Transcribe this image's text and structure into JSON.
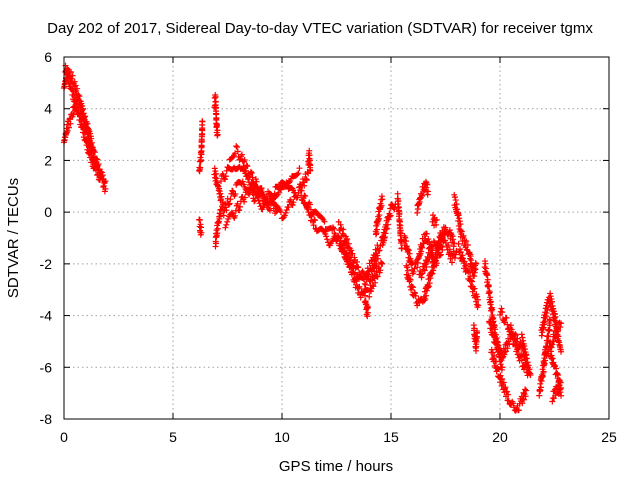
{
  "chart_data": {
    "type": "scatter",
    "title": "Day 202 of 2017, Sidereal Day-to-day VTEC variation (SDTVAR) for receiver tgmx",
    "xlabel": "GPS time / hours",
    "ylabel": "SDTVAR / TECUs",
    "xlim": [
      0,
      25
    ],
    "ylim": [
      -8,
      6
    ],
    "xticks": [
      0,
      5,
      10,
      15,
      20,
      25
    ],
    "yticks": [
      -8,
      -6,
      -4,
      -2,
      0,
      2,
      4,
      6
    ],
    "xtick_labels": [
      "0",
      "5",
      "10",
      "15",
      "20",
      "25"
    ],
    "ytick_labels": [
      "-8",
      "-6",
      "-4",
      "-2",
      "0",
      "2",
      "4",
      "6"
    ],
    "grid": true,
    "marker": "+",
    "series": [
      {
        "name": "SDTVAR",
        "color": "#ff0000",
        "tracks": [
          {
            "x": [
              0.0,
              0.15,
              0.3,
              0.45,
              0.6,
              0.75,
              0.9,
              1.05,
              1.2,
              1.35,
              1.5,
              1.65,
              1.8,
              1.9
            ],
            "y": [
              4.8,
              5.4,
              5.3,
              5.0,
              4.6,
              4.2,
              3.7,
              3.1,
              2.6,
              2.1,
              1.6,
              1.3,
              1.1,
              0.9
            ]
          },
          {
            "x": [
              0.0,
              0.1,
              0.2,
              0.35,
              0.5,
              0.65,
              0.8,
              0.95,
              1.1,
              1.25,
              1.4,
              1.55,
              1.7,
              1.9
            ],
            "y": [
              2.7,
              3.1,
              3.4,
              3.7,
              4.1,
              4.3,
              4.0,
              3.6,
              3.2,
              2.7,
              2.2,
              1.8,
              1.4,
              1.2
            ]
          },
          {
            "x": [
              0.05,
              0.2,
              0.4,
              0.6,
              0.8,
              1.0,
              1.2,
              1.4
            ],
            "y": [
              5.6,
              5.2,
              4.6,
              4.0,
              3.4,
              2.8,
              2.2,
              1.7
            ]
          },
          {
            "x": [
              6.2,
              6.25,
              6.3,
              6.35
            ],
            "y": [
              1.6,
              1.9,
              2.3,
              3.5
            ]
          },
          {
            "x": [
              6.2,
              6.25,
              6.3
            ],
            "y": [
              -0.3,
              -0.6,
              -0.8
            ]
          },
          {
            "x": [
              6.9,
              6.95,
              7.0,
              7.05
            ],
            "y": [
              4.2,
              4.4,
              3.3,
              3.0
            ]
          },
          {
            "x": [
              6.95,
              7.0,
              7.1,
              7.2
            ],
            "y": [
              -1.2,
              -0.8,
              -0.3,
              0.1
            ]
          },
          {
            "x": [
              6.9,
              7.0,
              7.1,
              7.2,
              7.3
            ],
            "y": [
              1.6,
              1.2,
              0.9,
              0.5,
              0.3
            ]
          },
          {
            "x": [
              7.2,
              7.5,
              7.8,
              8.1,
              8.4,
              8.7,
              9.0,
              9.3,
              9.6,
              9.9,
              10.2,
              10.5,
              10.8
            ],
            "y": [
              1.2,
              1.6,
              1.9,
              1.6,
              1.3,
              1.0,
              0.8,
              0.6,
              0.7,
              0.9,
              1.2,
              1.5,
              1.7
            ]
          },
          {
            "x": [
              7.3,
              7.6,
              7.9,
              8.2,
              8.5,
              8.8,
              9.1,
              9.4,
              9.7,
              10.0,
              10.3,
              10.6
            ],
            "y": [
              0.0,
              0.5,
              0.9,
              1.2,
              0.9,
              0.5,
              0.2,
              0.4,
              0.8,
              1.1,
              0.9,
              0.6
            ]
          },
          {
            "x": [
              7.6,
              7.9,
              8.2,
              8.5,
              8.8,
              9.1,
              9.4,
              9.7,
              10.0,
              10.3,
              10.6,
              10.9,
              11.2
            ],
            "y": [
              2.2,
              2.4,
              2.0,
              1.5,
              1.1,
              0.7,
              0.4,
              0.1,
              -0.1,
              0.2,
              0.6,
              1.0,
              1.5
            ]
          },
          {
            "x": [
              7.4,
              7.7,
              8.0,
              8.3,
              8.6,
              8.9,
              9.2,
              9.5,
              9.8
            ],
            "y": [
              -0.5,
              -0.2,
              0.2,
              0.6,
              1.0,
              0.8,
              0.4,
              0.2,
              0.1
            ]
          },
          {
            "x": [
              11.2,
              11.25,
              11.3
            ],
            "y": [
              1.9,
              2.2,
              1.6
            ]
          },
          {
            "x": [
              10.8,
              11.1,
              11.4,
              11.7,
              12.0,
              12.3,
              12.6,
              12.9,
              13.2,
              13.5,
              13.8,
              14.1,
              14.4
            ],
            "y": [
              0.8,
              0.4,
              0.0,
              -0.3,
              -0.5,
              -0.7,
              -1.1,
              -1.6,
              -2.2,
              -2.6,
              -2.8,
              -2.4,
              -1.8
            ]
          },
          {
            "x": [
              11.0,
              11.3,
              11.6,
              11.9,
              12.2,
              12.5,
              12.8,
              13.1,
              13.4,
              13.7,
              14.0,
              14.3,
              14.6
            ],
            "y": [
              0.2,
              -0.1,
              -0.6,
              -0.9,
              -1.2,
              -1.0,
              -1.4,
              -2.0,
              -2.8,
              -3.3,
              -3.1,
              -2.5,
              -2.0
            ]
          },
          {
            "x": [
              12.6,
              12.9,
              13.2,
              13.5,
              13.8,
              14.1,
              14.4,
              14.7
            ],
            "y": [
              -0.5,
              -1.0,
              -1.7,
              -2.2,
              -2.6,
              -2.0,
              -1.4,
              -1.0
            ]
          },
          {
            "x": [
              13.8,
              13.85,
              13.9,
              13.95
            ],
            "y": [
              -3.3,
              -3.6,
              -3.9,
              -3.7
            ]
          },
          {
            "x": [
              14.3,
              14.4,
              14.5,
              14.6
            ],
            "y": [
              -0.8,
              -0.3,
              0.2,
              0.5
            ]
          },
          {
            "x": [
              14.6,
              14.8,
              15.0,
              15.2
            ],
            "y": [
              -1.2,
              -0.5,
              0.1,
              0.3
            ]
          },
          {
            "x": [
              15.3,
              15.35,
              15.4,
              15.45,
              15.5
            ],
            "y": [
              0.6,
              0.2,
              -0.4,
              -1.0,
              -1.4
            ]
          },
          {
            "x": [
              15.6,
              15.8,
              16.0,
              16.2,
              16.4,
              16.6,
              16.8,
              17.0,
              17.2,
              17.4,
              17.6,
              17.8,
              18.0
            ],
            "y": [
              -1.0,
              -1.6,
              -2.2,
              -2.0,
              -1.3,
              -0.9,
              -1.4,
              -2.0,
              -1.7,
              -1.2,
              -1.4,
              -1.8,
              -1.5
            ]
          },
          {
            "x": [
              15.7,
              15.9,
              16.1,
              16.3,
              16.5,
              16.7,
              16.9,
              17.1,
              17.3,
              17.5,
              17.7,
              17.9
            ],
            "y": [
              -2.2,
              -2.8,
              -3.3,
              -3.6,
              -3.4,
              -2.8,
              -2.2,
              -1.6,
              -1.0,
              -0.6,
              -0.8,
              -1.2
            ]
          },
          {
            "x": [
              16.2,
              16.3,
              16.4,
              16.5,
              16.6,
              16.7
            ],
            "y": [
              0.1,
              0.4,
              0.7,
              0.9,
              1.1,
              0.8
            ]
          },
          {
            "x": [
              16.3,
              16.5,
              16.7,
              16.9,
              17.1,
              17.3,
              17.5
            ],
            "y": [
              -2.5,
              -2.2,
              -1.8,
              -1.4,
              -1.1,
              -0.9,
              -0.8
            ]
          },
          {
            "x": [
              16.9,
              17.0,
              17.1
            ],
            "y": [
              -0.2,
              -0.4,
              -0.3
            ]
          },
          {
            "x": [
              17.9,
              18.0,
              18.1,
              18.2
            ],
            "y": [
              0.5,
              0.2,
              -0.3,
              -0.7
            ]
          },
          {
            "x": [
              18.1,
              18.3,
              18.5,
              18.7,
              18.9,
              19.0
            ],
            "y": [
              -1.4,
              -1.9,
              -2.3,
              -2.8,
              -3.3,
              -3.6
            ]
          },
          {
            "x": [
              18.2,
              18.4,
              18.6,
              18.7,
              18.8,
              18.9
            ],
            "y": [
              -0.8,
              -1.2,
              -1.6,
              -2.1,
              -2.4,
              -2.0
            ]
          },
          {
            "x": [
              18.8,
              18.85,
              18.9,
              18.95
            ],
            "y": [
              -4.5,
              -4.9,
              -5.2,
              -4.6
            ]
          },
          {
            "x": [
              19.3,
              19.4,
              19.5,
              19.6,
              19.7,
              19.8,
              19.9,
              20.0,
              20.1
            ],
            "y": [
              -2.0,
              -2.5,
              -3.1,
              -3.7,
              -4.3,
              -4.8,
              -5.2,
              -5.6,
              -6.0
            ]
          },
          {
            "x": [
              19.5,
              19.7,
              19.9,
              20.1,
              20.3,
              20.5,
              20.7,
              20.9,
              21.1,
              21.3
            ],
            "y": [
              -4.2,
              -4.8,
              -5.3,
              -5.6,
              -5.2,
              -4.8,
              -5.1,
              -5.6,
              -5.9,
              -6.2
            ]
          },
          {
            "x": [
              19.6,
              19.8,
              20.0,
              20.2,
              20.4,
              20.6,
              20.8,
              21.0,
              21.2
            ],
            "y": [
              -5.4,
              -5.9,
              -6.4,
              -6.8,
              -7.2,
              -7.4,
              -7.6,
              -7.3,
              -6.9
            ]
          },
          {
            "x": [
              20.0,
              20.2,
              20.4,
              20.6,
              20.8,
              21.0,
              21.2
            ],
            "y": [
              -3.8,
              -4.1,
              -4.4,
              -4.7,
              -5.0,
              -5.3,
              -5.5
            ]
          },
          {
            "x": [
              21.0,
              21.1,
              21.2,
              21.3,
              21.4
            ],
            "y": [
              -4.9,
              -5.3,
              -5.7,
              -6.0,
              -6.3
            ]
          },
          {
            "x": [
              21.8,
              21.9,
              22.0,
              22.1,
              22.2,
              22.3
            ],
            "y": [
              -7.0,
              -6.5,
              -6.0,
              -5.4,
              -4.8,
              -4.2
            ]
          },
          {
            "x": [
              21.9,
              22.0,
              22.1,
              22.2,
              22.3,
              22.4,
              22.5
            ],
            "y": [
              -4.7,
              -4.3,
              -3.9,
              -3.5,
              -3.3,
              -3.7,
              -4.1
            ]
          },
          {
            "x": [
              22.0,
              22.2,
              22.4,
              22.6,
              22.8
            ],
            "y": [
              -5.6,
              -5.3,
              -5.0,
              -4.6,
              -4.3
            ]
          },
          {
            "x": [
              22.3,
              22.4,
              22.5,
              22.6,
              22.7,
              22.8
            ],
            "y": [
              -5.4,
              -5.7,
              -6.0,
              -6.2,
              -6.5,
              -6.8
            ]
          },
          {
            "x": [
              22.4,
              22.5,
              22.6,
              22.7,
              22.8
            ],
            "y": [
              -7.2,
              -7.0,
              -6.8,
              -7.0,
              -7.1
            ]
          },
          {
            "x": [
              22.5,
              22.6,
              22.7,
              22.8
            ],
            "y": [
              -4.0,
              -4.5,
              -5.0,
              -5.4
            ]
          }
        ]
      }
    ]
  }
}
